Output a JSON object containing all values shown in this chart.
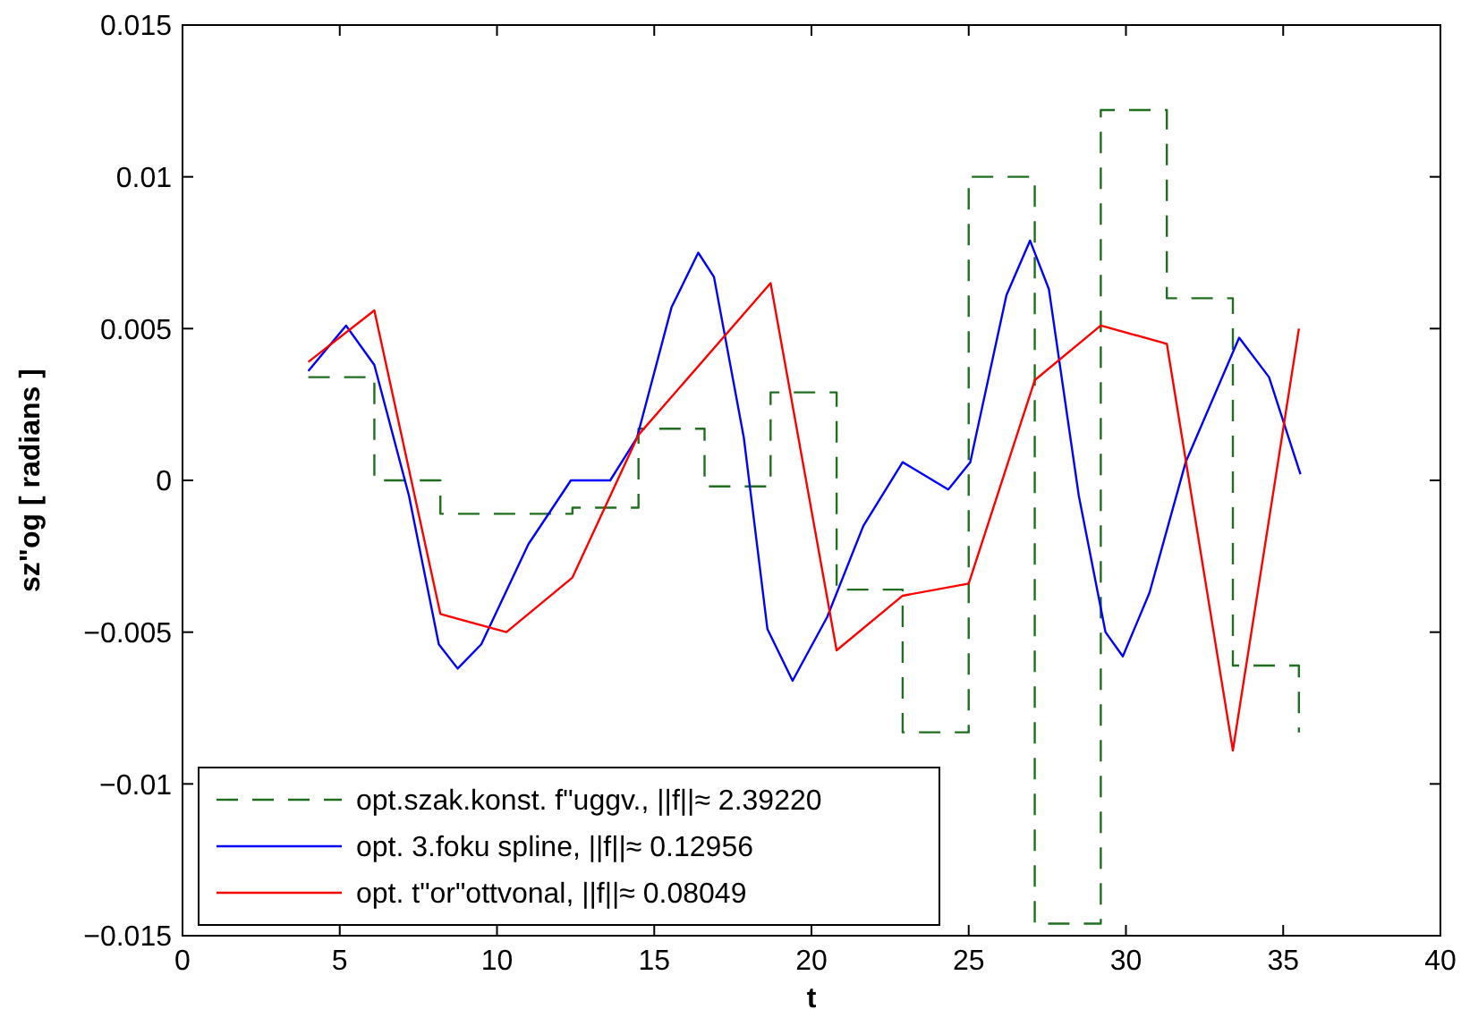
{
  "chart_data": {
    "type": "line",
    "xlabel": "t",
    "ylabel": "sz\"og [ radians ]",
    "xlim": [
      0,
      40
    ],
    "xticks": [
      0,
      5,
      10,
      15,
      20,
      25,
      30,
      35,
      40
    ],
    "ylim": [
      -0.015,
      0.015
    ],
    "yticks": [
      {
        "value": -0.015,
        "label": "−0.015"
      },
      {
        "value": -0.01,
        "label": "−0.01"
      },
      {
        "value": -0.005,
        "label": "−0.005"
      },
      0,
      0.005,
      0.01,
      0.015
    ],
    "grid": false,
    "legend": "bottom left",
    "marker": "none",
    "series": [
      {
        "name": "opt.szak.konst. f\"uggv., ||f||≈ 2.39220",
        "type": "step",
        "line_style": "dashed",
        "color": "#1f6f1f",
        "x": [
          4,
          6.1,
          8.2,
          10.3,
          12.4,
          14.5,
          16.6,
          18.7,
          20.8,
          22.9,
          25,
          27.1,
          29.2,
          31.3,
          33.4,
          35.5
        ],
        "values": [
          0.0034,
          0,
          -0.0011,
          -0.0011,
          -0.0009,
          0.0017,
          -0.0002,
          0.0029,
          -0.0036,
          -0.0083,
          0.01,
          -0.0146,
          0.0122,
          0.006,
          -0.0061,
          -0.0083
        ]
      },
      {
        "name": "opt. 3.foku spline, ||f||≈ 0.12956",
        "line_style": "solid",
        "color": "#0000ff",
        "x": [
          4,
          5.2,
          6.1,
          7.2,
          8.15,
          8.75,
          9.5,
          11,
          12.35,
          13.6,
          14.45,
          15.55,
          16.4,
          16.9,
          17.85,
          18.6,
          19.4,
          20.5,
          21.65,
          22.9,
          24.35,
          25.05,
          26.2,
          26.95,
          27.55,
          28.5,
          29.35,
          29.9,
          30.75,
          31.9,
          33.6,
          34.55,
          35.55
        ],
        "values": [
          0.0036,
          0.0051,
          0.0038,
          -0.0005,
          -0.0054,
          -0.0062,
          -0.0054,
          -0.0021,
          0,
          0,
          0.0014,
          0.0057,
          0.0075,
          0.0067,
          0.0014,
          -0.0049,
          -0.0066,
          -0.0045,
          -0.0015,
          0.0006,
          -0.0003,
          0.0006,
          0.0061,
          0.0079,
          0.0063,
          -0.0005,
          -0.005,
          -0.0058,
          -0.0037,
          0.0006,
          0.0047,
          0.0034,
          0.0002
        ]
      },
      {
        "name": "opt. t\"or\"ottvonal, ||f||≈ 0.08049",
        "line_style": "solid",
        "color": "#ff0000",
        "x": [
          4,
          6.1,
          8.2,
          10.3,
          12.4,
          14.5,
          18.7,
          20.8,
          22.9,
          25,
          27.1,
          29.2,
          31.3,
          33.4,
          35.5
        ],
        "values": [
          0.0039,
          0.0056,
          -0.0044,
          -0.005,
          -0.0032,
          0.0015,
          0.0065,
          -0.0056,
          -0.0038,
          -0.0034,
          0.0033,
          0.0051,
          0.0045,
          -0.0089,
          0.005
        ]
      }
    ]
  }
}
